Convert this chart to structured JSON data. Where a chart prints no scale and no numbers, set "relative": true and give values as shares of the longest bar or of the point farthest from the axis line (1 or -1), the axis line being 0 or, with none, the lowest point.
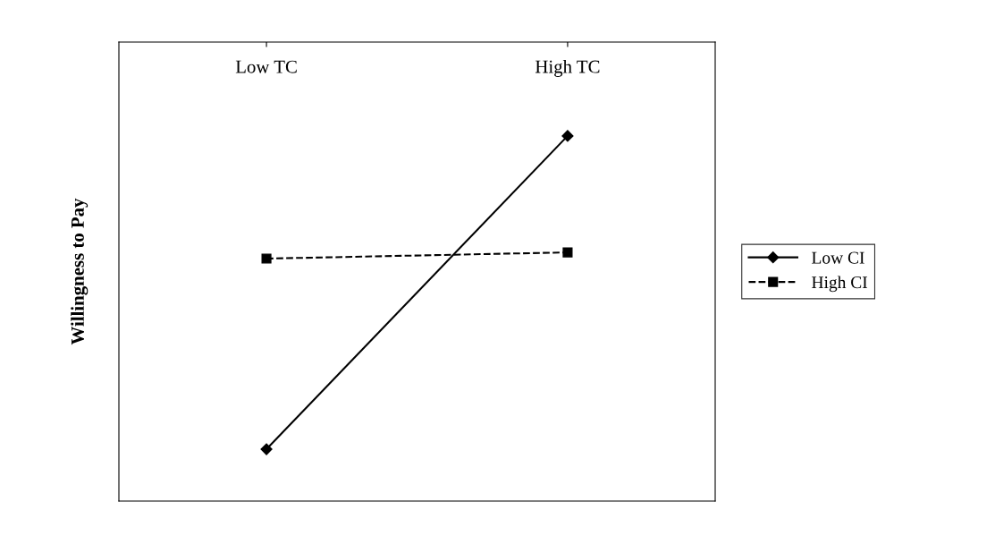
{
  "chart_data": {
    "type": "line",
    "relative": true,
    "ylabel": "Willingness to Pay",
    "categories": [
      "Low TC",
      "High TC"
    ],
    "series": [
      {
        "name": "Low CI",
        "color": "#000000",
        "values": [
          0.142,
          1
        ],
        "marker": "diamond",
        "line_style": "solid"
      },
      {
        "name": "High CI",
        "color": "#000000",
        "values": [
          0.664,
          0.681
        ],
        "marker": "square",
        "line_style": "dashed"
      }
    ],
    "legend": "right",
    "grid": false
  }
}
